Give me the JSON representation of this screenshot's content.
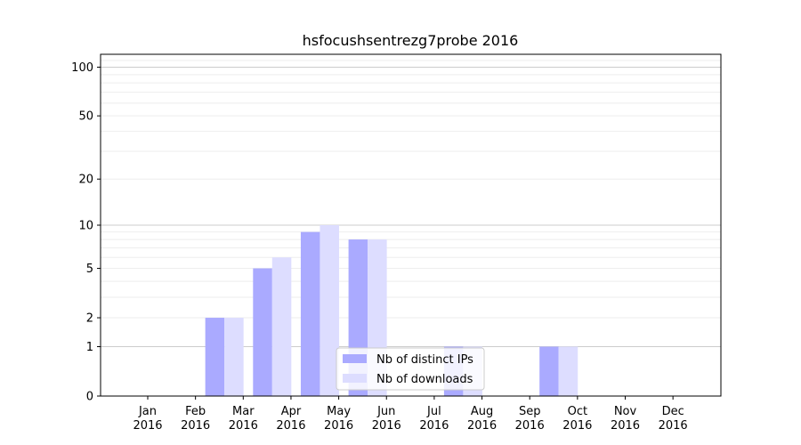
{
  "chart_data": {
    "type": "bar",
    "title": "hsfocushsentrezg7probe 2016",
    "categories": [
      [
        "Jan",
        "2016"
      ],
      [
        "Feb",
        "2016"
      ],
      [
        "Mar",
        "2016"
      ],
      [
        "Apr",
        "2016"
      ],
      [
        "May",
        "2016"
      ],
      [
        "Jun",
        "2016"
      ],
      [
        "Jul",
        "2016"
      ],
      [
        "Aug",
        "2016"
      ],
      [
        "Sep",
        "2016"
      ],
      [
        "Oct",
        "2016"
      ],
      [
        "Nov",
        "2016"
      ],
      [
        "Dec",
        "2016"
      ]
    ],
    "series": [
      {
        "name": "Nb of distinct IPs",
        "color": "#aaaaff",
        "values": [
          0,
          2,
          5,
          9,
          8,
          0,
          1,
          0,
          1,
          0,
          0,
          0
        ]
      },
      {
        "name": "Nb of downloads",
        "color": "#ddddff",
        "values": [
          0,
          2,
          6,
          10,
          8,
          0,
          1,
          0,
          1,
          0,
          0,
          0
        ]
      }
    ],
    "y_scale": "log(1+y)",
    "y_ticks": [
      0,
      1,
      2,
      5,
      10,
      20,
      50,
      100
    ],
    "ylim": [
      0,
      120
    ],
    "grid": true,
    "legend_position": "lower-center"
  }
}
